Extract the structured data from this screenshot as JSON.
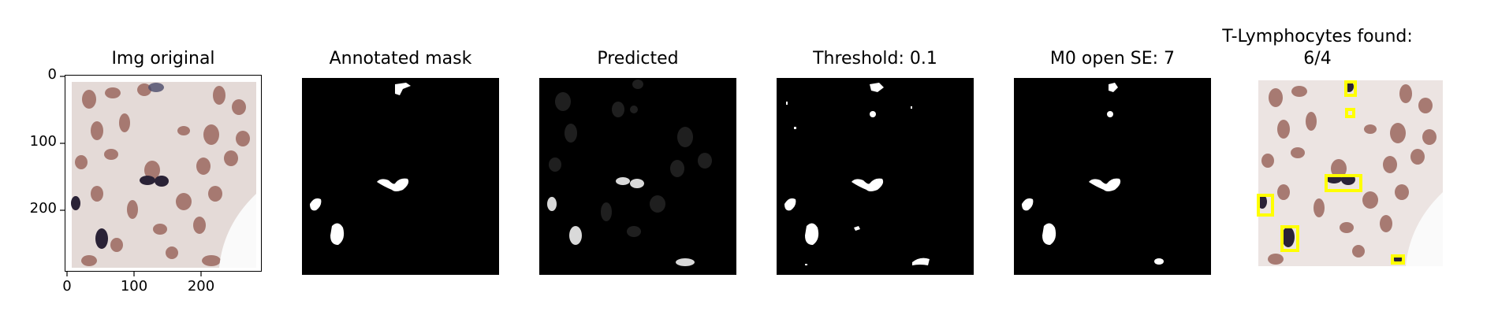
{
  "panels": [
    {
      "title": "Img original"
    },
    {
      "title": "Annotated mask"
    },
    {
      "title": "Predicted"
    },
    {
      "title": "Threshold: 0.1"
    },
    {
      "title": "M0 open SE: 7"
    },
    {
      "title_line1": "T-Lymphocytes found:",
      "title_line2": "6/4"
    }
  ],
  "axes": {
    "y_ticks": [
      "0",
      "100",
      "200"
    ],
    "x_ticks": [
      "0",
      "100",
      "200"
    ]
  },
  "colors": {
    "mask_fg": "#ffffff",
    "mask_bg": "#000000",
    "detection_box": "#ffff00",
    "tissue_bg": "#ece4e2",
    "nucleus_brown": "#9a6a62",
    "nucleus_dark": "#2a2236"
  }
}
